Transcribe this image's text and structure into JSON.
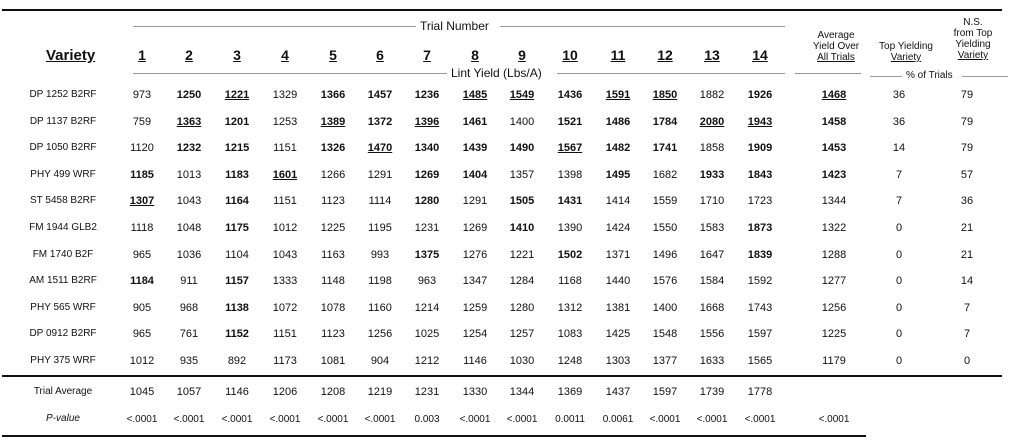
{
  "headers": {
    "variety": "Variety",
    "trial_number": "Trial Number",
    "lint_yield": "Lint Yield (Lbs/A)",
    "trials": [
      "1",
      "2",
      "3",
      "4",
      "5",
      "6",
      "7",
      "8",
      "9",
      "10",
      "11",
      "12",
      "13",
      "14"
    ],
    "avg_line1": "Average",
    "avg_line2": "Yield Over",
    "avg_line3": "All Trials",
    "top_line1": "Top Yielding",
    "top_line2": "Variety",
    "ns_line1": "N.S.",
    "ns_line2": "from Top",
    "ns_line3": "Yielding",
    "ns_line4": "Variety",
    "pct_trials": "% of Trials"
  },
  "rows": [
    {
      "variety": "DP 1252 B2RF",
      "values": [
        "973",
        "1250",
        "1221",
        "1329",
        "1366",
        "1457",
        "1236",
        "1485",
        "1549",
        "1436",
        "1591",
        "1850",
        "1882",
        "1926"
      ],
      "bold": [
        0,
        1,
        1,
        0,
        1,
        1,
        1,
        1,
        1,
        1,
        1,
        1,
        0,
        1
      ],
      "under": [
        0,
        0,
        1,
        0,
        0,
        0,
        0,
        1,
        1,
        0,
        1,
        1,
        0,
        0
      ],
      "avg": "1468",
      "avg_b": 1,
      "avg_u": 1,
      "top": "36",
      "ns": "79"
    },
    {
      "variety": "DP 1137 B2RF",
      "values": [
        "759",
        "1363",
        "1201",
        "1253",
        "1389",
        "1372",
        "1396",
        "1461",
        "1400",
        "1521",
        "1486",
        "1784",
        "2080",
        "1943"
      ],
      "bold": [
        0,
        1,
        1,
        0,
        1,
        1,
        1,
        1,
        0,
        1,
        1,
        1,
        1,
        1
      ],
      "under": [
        0,
        1,
        0,
        0,
        1,
        0,
        1,
        0,
        0,
        0,
        0,
        0,
        1,
        1
      ],
      "avg": "1458",
      "avg_b": 1,
      "avg_u": 0,
      "top": "36",
      "ns": "79"
    },
    {
      "variety": "DP 1050 B2RF",
      "values": [
        "1120",
        "1232",
        "1215",
        "1151",
        "1326",
        "1470",
        "1340",
        "1439",
        "1490",
        "1567",
        "1482",
        "1741",
        "1858",
        "1909"
      ],
      "bold": [
        0,
        1,
        1,
        0,
        1,
        1,
        1,
        1,
        1,
        1,
        1,
        1,
        0,
        1
      ],
      "under": [
        0,
        0,
        0,
        0,
        0,
        1,
        0,
        0,
        0,
        1,
        0,
        0,
        0,
        0
      ],
      "avg": "1453",
      "avg_b": 1,
      "avg_u": 0,
      "top": "14",
      "ns": "79"
    },
    {
      "variety": "PHY 499 WRF",
      "values": [
        "1185",
        "1013",
        "1183",
        "1601",
        "1266",
        "1291",
        "1269",
        "1404",
        "1357",
        "1398",
        "1495",
        "1682",
        "1933",
        "1843"
      ],
      "bold": [
        1,
        0,
        1,
        1,
        0,
        0,
        1,
        1,
        0,
        0,
        1,
        0,
        1,
        1
      ],
      "under": [
        0,
        0,
        0,
        1,
        0,
        0,
        0,
        0,
        0,
        0,
        0,
        0,
        0,
        0
      ],
      "avg": "1423",
      "avg_b": 1,
      "avg_u": 0,
      "top": "7",
      "ns": "57"
    },
    {
      "variety": "ST 5458 B2RF",
      "values": [
        "1307",
        "1043",
        "1164",
        "1151",
        "1123",
        "1114",
        "1280",
        "1291",
        "1505",
        "1431",
        "1414",
        "1559",
        "1710",
        "1723"
      ],
      "bold": [
        1,
        0,
        1,
        0,
        0,
        0,
        1,
        0,
        1,
        1,
        0,
        0,
        0,
        0
      ],
      "under": [
        1,
        0,
        0,
        0,
        0,
        0,
        0,
        0,
        0,
        0,
        0,
        0,
        0,
        0
      ],
      "avg": "1344",
      "avg_b": 0,
      "avg_u": 0,
      "top": "7",
      "ns": "36"
    },
    {
      "variety": "FM 1944 GLB2",
      "values": [
        "1118",
        "1048",
        "1175",
        "1012",
        "1225",
        "1195",
        "1231",
        "1269",
        "1410",
        "1390",
        "1424",
        "1550",
        "1583",
        "1873"
      ],
      "bold": [
        0,
        0,
        1,
        0,
        0,
        0,
        0,
        0,
        1,
        0,
        0,
        0,
        0,
        1
      ],
      "under": [
        0,
        0,
        0,
        0,
        0,
        0,
        0,
        0,
        0,
        0,
        0,
        0,
        0,
        0
      ],
      "avg": "1322",
      "avg_b": 0,
      "avg_u": 0,
      "top": "0",
      "ns": "21"
    },
    {
      "variety": "FM 1740 B2F",
      "values": [
        "965",
        "1036",
        "1104",
        "1043",
        "1163",
        "993",
        "1375",
        "1276",
        "1221",
        "1502",
        "1371",
        "1496",
        "1647",
        "1839"
      ],
      "bold": [
        0,
        0,
        0,
        0,
        0,
        0,
        1,
        0,
        0,
        1,
        0,
        0,
        0,
        1
      ],
      "under": [
        0,
        0,
        0,
        0,
        0,
        0,
        0,
        0,
        0,
        0,
        0,
        0,
        0,
        0
      ],
      "avg": "1288",
      "avg_b": 0,
      "avg_u": 0,
      "top": "0",
      "ns": "21"
    },
    {
      "variety": "AM 1511 B2RF",
      "values": [
        "1184",
        "911",
        "1157",
        "1333",
        "1148",
        "1198",
        "963",
        "1347",
        "1284",
        "1168",
        "1440",
        "1576",
        "1584",
        "1592"
      ],
      "bold": [
        1,
        0,
        1,
        0,
        0,
        0,
        0,
        0,
        0,
        0,
        0,
        0,
        0,
        0
      ],
      "under": [
        0,
        0,
        0,
        0,
        0,
        0,
        0,
        0,
        0,
        0,
        0,
        0,
        0,
        0
      ],
      "avg": "1277",
      "avg_b": 0,
      "avg_u": 0,
      "top": "0",
      "ns": "14"
    },
    {
      "variety": "PHY 565 WRF",
      "values": [
        "905",
        "968",
        "1138",
        "1072",
        "1078",
        "1160",
        "1214",
        "1259",
        "1280",
        "1312",
        "1381",
        "1400",
        "1668",
        "1743"
      ],
      "bold": [
        0,
        0,
        1,
        0,
        0,
        0,
        0,
        0,
        0,
        0,
        0,
        0,
        0,
        0
      ],
      "under": [
        0,
        0,
        0,
        0,
        0,
        0,
        0,
        0,
        0,
        0,
        0,
        0,
        0,
        0
      ],
      "avg": "1256",
      "avg_b": 0,
      "avg_u": 0,
      "top": "0",
      "ns": "7"
    },
    {
      "variety": "DP 0912 B2RF",
      "values": [
        "965",
        "761",
        "1152",
        "1151",
        "1123",
        "1256",
        "1025",
        "1254",
        "1257",
        "1083",
        "1425",
        "1548",
        "1556",
        "1597"
      ],
      "bold": [
        0,
        0,
        1,
        0,
        0,
        0,
        0,
        0,
        0,
        0,
        0,
        0,
        0,
        0
      ],
      "under": [
        0,
        0,
        0,
        0,
        0,
        0,
        0,
        0,
        0,
        0,
        0,
        0,
        0,
        0
      ],
      "avg": "1225",
      "avg_b": 0,
      "avg_u": 0,
      "top": "0",
      "ns": "7"
    },
    {
      "variety": "PHY 375 WRF",
      "values": [
        "1012",
        "935",
        "892",
        "1173",
        "1081",
        "904",
        "1212",
        "1146",
        "1030",
        "1248",
        "1303",
        "1377",
        "1633",
        "1565"
      ],
      "bold": [
        0,
        0,
        0,
        0,
        0,
        0,
        0,
        0,
        0,
        0,
        0,
        0,
        0,
        0
      ],
      "under": [
        0,
        0,
        0,
        0,
        0,
        0,
        0,
        0,
        0,
        0,
        0,
        0,
        0,
        0
      ],
      "avg": "1179",
      "avg_b": 0,
      "avg_u": 0,
      "top": "0",
      "ns": "0"
    }
  ],
  "footer": {
    "trial_avg_label": "Trial Average",
    "trial_avg": [
      "1045",
      "1057",
      "1146",
      "1206",
      "1208",
      "1219",
      "1231",
      "1330",
      "1344",
      "1369",
      "1437",
      "1597",
      "1739",
      "1778"
    ],
    "pvalue_label": "P-value",
    "pvalue": [
      "<.0001",
      "<.0001",
      "<.0001",
      "<.0001",
      "<.0001",
      "<.0001",
      "0.003",
      "<.0001",
      "<.0001",
      "0.0011",
      "0.0061",
      "<.0001",
      "<.0001",
      "<.0001"
    ],
    "pvalue_avg": "<.0001"
  }
}
